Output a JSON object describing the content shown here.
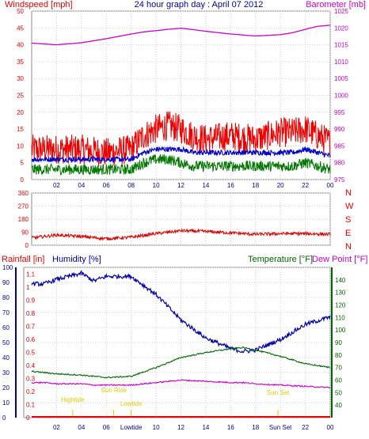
{
  "header": {
    "left_label": "Windspeed [mph]",
    "title": "24 hour graph day : April 07 2012",
    "right_label": "Barometer [mb]"
  },
  "colors": {
    "wind_gust": "#ee0000",
    "wind_avg": "#0000cc",
    "wind_low": "#007700",
    "barometer": "#cc00cc",
    "direction": "#dd0000",
    "humidity": "#0000aa",
    "temperature": "#006600",
    "dewpoint": "#cc00cc",
    "rain": "#ee0000",
    "events": "#ddcc00"
  },
  "chart_data": [
    {
      "type": "line",
      "x_ticks": [
        "02",
        "04",
        "06",
        "08",
        "10",
        "12",
        "14",
        "16",
        "18",
        "20",
        "22",
        "00"
      ],
      "y_left_ticks": [
        0,
        5,
        10,
        15,
        20,
        25,
        30,
        35,
        40,
        45,
        50
      ],
      "y_right_ticks": [
        975,
        980,
        985,
        990,
        995,
        1000,
        1005,
        1010,
        1015,
        1020,
        1025
      ],
      "ylim_left": [
        0,
        50
      ],
      "ylim_right": [
        975,
        1025
      ],
      "x_hours": [
        0,
        2,
        4,
        6,
        8,
        9,
        10,
        11,
        12,
        13,
        14,
        16,
        18,
        20,
        21,
        22,
        23,
        24
      ],
      "series": [
        {
          "axis": "left",
          "values": [
            9,
            9,
            9,
            8,
            9,
            13,
            15,
            16,
            15,
            13,
            12,
            13,
            12,
            14,
            14,
            15,
            13,
            11
          ]
        },
        {
          "axis": "left",
          "values": [
            6,
            6,
            6,
            6,
            6,
            8,
            9,
            9,
            9,
            8,
            8,
            8,
            8,
            8,
            8,
            9,
            8,
            7
          ]
        },
        {
          "axis": "left",
          "values": [
            3,
            3,
            3,
            3,
            3,
            5,
            6,
            6,
            5,
            4,
            4,
            4,
            4,
            4,
            4,
            5,
            4,
            3
          ]
        },
        {
          "axis": "right",
          "values": [
            1015.5,
            1015.0,
            1015.6,
            1016.8,
            1018.2,
            1018.8,
            1019.2,
            1019.6,
            1019.9,
            1019.5,
            1019.0,
            1018.2,
            1017.6,
            1018.0,
            1018.6,
            1019.6,
            1020.5,
            1020.8
          ]
        }
      ]
    },
    {
      "type": "line",
      "x_ticks": [
        "02",
        "04",
        "06",
        "08",
        "10",
        "12",
        "14",
        "16",
        "18",
        "20",
        "22",
        "00"
      ],
      "y_ticks": [
        0,
        90,
        180,
        270,
        360
      ],
      "ylim": [
        0,
        360
      ],
      "compass_labels": [
        "N",
        "W",
        "S",
        "E",
        "N"
      ],
      "x_hours": [
        0,
        2,
        4,
        6,
        8,
        10,
        12,
        14,
        16,
        18,
        20,
        22,
        24
      ],
      "series": [
        {
          "values": [
            50,
            70,
            60,
            45,
            55,
            80,
            100,
            95,
            85,
            75,
            80,
            80,
            75
          ]
        }
      ]
    },
    {
      "type": "line",
      "labels": {
        "rain": "Rainfall [in]",
        "humidity": "Humidity [%]",
        "temperature": "Temperature [°F]",
        "dewpoint": "Dew Point [°F]"
      },
      "x_ticks": [
        "02",
        "04",
        "06",
        "Lowtide",
        "10",
        "12",
        "14",
        "16",
        "18",
        "Sun Set",
        "22",
        "00"
      ],
      "y_humidity_ticks": [
        0,
        10,
        20,
        30,
        40,
        50,
        60,
        70,
        80,
        90,
        100
      ],
      "y_rain_ticks": [
        0,
        0.1,
        0.2,
        0.3,
        0.4,
        0.5,
        0.6,
        0.7,
        0.8,
        0.9,
        1,
        1.1
      ],
      "y_temp_ticks": [
        40,
        50,
        60,
        70,
        80,
        90,
        100,
        110,
        120,
        130,
        140
      ],
      "ylim_humidity": [
        0,
        100
      ],
      "ylim_temp": [
        30,
        150
      ],
      "x_hours": [
        0,
        1,
        2,
        4,
        5,
        6,
        8,
        10,
        12,
        14,
        16,
        17,
        18,
        20,
        22,
        24
      ],
      "series": [
        {
          "axis": "humidity",
          "values": [
            89,
            89,
            92,
            96,
            91,
            94,
            94,
            82,
            65,
            53,
            46,
            44,
            45,
            52,
            62,
            67
          ]
        },
        {
          "axis": "temp",
          "values": [
            67,
            66,
            65,
            64,
            63,
            62,
            63,
            70,
            78,
            82,
            85,
            86,
            84,
            79,
            73,
            70
          ]
        },
        {
          "axis": "temp",
          "values": [
            58,
            58,
            57,
            57,
            56,
            56,
            56,
            58,
            60,
            59,
            58,
            58,
            57,
            56,
            55,
            54
          ]
        },
        {
          "axis": "humidity",
          "values": [
            0,
            0,
            0,
            0,
            0,
            0,
            0,
            0,
            0,
            0,
            0,
            0,
            0,
            0,
            0,
            0
          ]
        }
      ],
      "events": [
        {
          "label": "Hightide",
          "hour": 3.3
        },
        {
          "label": "Sun Rise",
          "hour": 6.6
        },
        {
          "label": "Lowtide",
          "hour": 8.0
        },
        {
          "label": "Sun Set",
          "hour": 19.8
        }
      ]
    }
  ]
}
